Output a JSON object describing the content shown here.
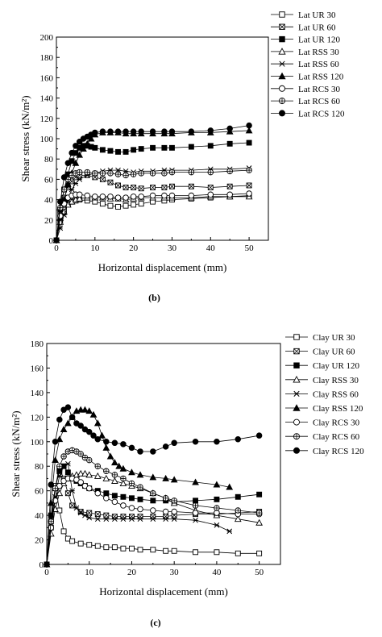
{
  "chart_data": [
    {
      "type": "line",
      "panel_label": "(b)",
      "xlabel": "Horizontal displacement (mm)",
      "ylabel": "Shear stress (kN/m²)",
      "xlim": [
        0,
        55
      ],
      "ylim": [
        0,
        200
      ],
      "xticks": [
        0,
        10,
        20,
        30,
        40,
        50
      ],
      "yticks": [
        0,
        20,
        40,
        60,
        80,
        100,
        120,
        140,
        160,
        180,
        200
      ],
      "legend_position": "top-right",
      "series": [
        {
          "name": "Lat UR 30",
          "marker": "square-open",
          "x": [
            0,
            1,
            2,
            3,
            4,
            5,
            6,
            8,
            10,
            12,
            14,
            16,
            18,
            20,
            22,
            25,
            28,
            30,
            35,
            40,
            45,
            50
          ],
          "y": [
            0,
            20,
            30,
            36,
            38,
            39,
            40,
            39,
            38,
            36,
            34,
            33,
            34,
            35,
            36,
            38,
            39,
            40,
            41,
            42,
            43,
            44
          ]
        },
        {
          "name": "Lat UR 60",
          "marker": "square-cross",
          "x": [
            0,
            1,
            2,
            3,
            4,
            5,
            6,
            8,
            10,
            12,
            14,
            16,
            18,
            20,
            22,
            25,
            28,
            30,
            35,
            40,
            45,
            50
          ],
          "y": [
            0,
            28,
            42,
            52,
            58,
            62,
            64,
            64,
            62,
            60,
            57,
            54,
            52,
            52,
            51,
            52,
            52,
            53,
            53,
            52,
            53,
            54
          ]
        },
        {
          "name": "Lat UR 120",
          "marker": "square-filled",
          "x": [
            0,
            1,
            2,
            3,
            4,
            5,
            6,
            7,
            8,
            9,
            10,
            12,
            14,
            16,
            18,
            20,
            22,
            25,
            28,
            30,
            35,
            40,
            45,
            50
          ],
          "y": [
            0,
            30,
            50,
            65,
            78,
            86,
            91,
            93,
            93,
            92,
            91,
            89,
            88,
            87,
            87,
            89,
            90,
            91,
            91,
            91,
            92,
            93,
            95,
            96
          ]
        },
        {
          "name": "Lat RSS 30",
          "marker": "triangle-open",
          "x": [
            0,
            1,
            2,
            3,
            4,
            5,
            6,
            8,
            10,
            12,
            14,
            16,
            18,
            20,
            22,
            25,
            28,
            30,
            35,
            40,
            45,
            50
          ],
          "y": [
            0,
            18,
            28,
            35,
            38,
            40,
            41,
            42,
            42,
            42,
            41,
            41,
            40,
            41,
            42,
            42,
            42,
            42,
            42,
            43,
            43,
            43
          ]
        },
        {
          "name": "Lat RSS 60",
          "marker": "x-star",
          "x": [
            0,
            1,
            2,
            3,
            4,
            5,
            6,
            8,
            10,
            12,
            14,
            16,
            18,
            20,
            22,
            25,
            28,
            30,
            35,
            40,
            45,
            50
          ],
          "y": [
            0,
            12,
            25,
            40,
            50,
            56,
            60,
            64,
            66,
            68,
            69,
            69,
            68,
            67,
            68,
            68,
            69,
            69,
            69,
            70,
            70,
            71
          ]
        },
        {
          "name": "Lat RSS 120",
          "marker": "triangle-filled",
          "x": [
            0,
            1,
            2,
            3,
            4,
            5,
            6,
            7,
            8,
            9,
            10,
            12,
            14,
            16,
            18,
            20,
            22,
            25,
            28,
            30,
            35,
            40,
            45,
            50
          ],
          "y": [
            0,
            22,
            40,
            55,
            66,
            76,
            84,
            90,
            95,
            100,
            104,
            106,
            106,
            106,
            105,
            105,
            105,
            105,
            105,
            105,
            106,
            106,
            107,
            108
          ]
        },
        {
          "name": "Lat RCS 30",
          "marker": "circle-open",
          "x": [
            0,
            1,
            2,
            3,
            4,
            5,
            6,
            8,
            10,
            12,
            14,
            16,
            18,
            20,
            22,
            25,
            28,
            30,
            35,
            40,
            45,
            50
          ],
          "y": [
            0,
            24,
            36,
            42,
            44,
            45,
            45,
            44,
            43,
            43,
            43,
            42,
            42,
            43,
            43,
            44,
            44,
            44,
            44,
            45,
            45,
            46
          ]
        },
        {
          "name": "Lat RCS 60",
          "marker": "circle-cross",
          "x": [
            0,
            1,
            2,
            3,
            4,
            5,
            6,
            8,
            10,
            12,
            14,
            16,
            18,
            20,
            22,
            25,
            28,
            30,
            35,
            40,
            45,
            50
          ],
          "y": [
            0,
            32,
            50,
            60,
            64,
            66,
            67,
            67,
            66,
            66,
            66,
            65,
            64,
            65,
            66,
            66,
            66,
            67,
            67,
            67,
            68,
            69
          ]
        },
        {
          "name": "Lat RCS 120",
          "marker": "circle-filled",
          "x": [
            0,
            1,
            2,
            3,
            4,
            5,
            6,
            7,
            8,
            9,
            10,
            12,
            14,
            16,
            18,
            20,
            22,
            25,
            28,
            30,
            35,
            40,
            45,
            50
          ],
          "y": [
            0,
            38,
            62,
            76,
            86,
            93,
            97,
            100,
            102,
            104,
            106,
            107,
            107,
            107,
            107,
            107,
            107,
            107,
            107,
            107,
            107,
            108,
            110,
            113
          ]
        }
      ]
    },
    {
      "type": "line",
      "panel_label": "(c)",
      "xlabel": "Horizontal displacement (mm)",
      "ylabel": "Shear stress (kN/m²)",
      "xlim": [
        0,
        55
      ],
      "ylim": [
        0,
        180
      ],
      "xticks": [
        0,
        10,
        20,
        30,
        40,
        50
      ],
      "yticks": [
        0,
        20,
        40,
        60,
        80,
        100,
        120,
        140,
        160,
        180
      ],
      "legend_position": "top-right",
      "series": [
        {
          "name": "Clay UR 30",
          "marker": "square-open",
          "x": [
            0,
            1,
            2,
            3,
            4,
            5,
            6,
            8,
            10,
            12,
            14,
            16,
            18,
            20,
            22,
            25,
            28,
            30,
            35,
            40,
            45,
            50
          ],
          "y": [
            0,
            30,
            64,
            44,
            27,
            21,
            19,
            17,
            16,
            15,
            14,
            14,
            13,
            13,
            12,
            12,
            11,
            11,
            10,
            10,
            9,
            9
          ]
        },
        {
          "name": "Clay UR 60",
          "marker": "square-cross",
          "x": [
            0,
            1,
            2,
            3,
            4,
            5,
            6,
            8,
            10,
            12,
            14,
            16,
            18,
            20,
            22,
            25,
            28,
            30,
            35,
            40,
            45,
            50
          ],
          "y": [
            0,
            35,
            62,
            78,
            70,
            58,
            48,
            43,
            42,
            41,
            40,
            39,
            39,
            39,
            39,
            39,
            39,
            40,
            41,
            41,
            42,
            43
          ]
        },
        {
          "name": "Clay UR 120",
          "marker": "square-filled",
          "x": [
            0,
            1,
            2,
            3,
            4,
            5,
            6,
            7,
            8,
            9,
            10,
            12,
            14,
            16,
            18,
            20,
            22,
            25,
            28,
            30,
            35,
            40,
            45,
            50
          ],
          "y": [
            0,
            40,
            62,
            76,
            80,
            75,
            70,
            68,
            66,
            64,
            62,
            60,
            58,
            56,
            55,
            54,
            53,
            52,
            52,
            51,
            52,
            53,
            55,
            57
          ]
        },
        {
          "name": "Clay RSS 30",
          "marker": "triangle-open",
          "x": [
            0,
            1,
            2,
            3,
            4,
            5,
            6,
            7,
            8,
            9,
            10,
            12,
            14,
            16,
            18,
            20,
            22,
            25,
            28,
            30,
            35,
            40,
            45,
            50
          ],
          "y": [
            0,
            25,
            45,
            58,
            66,
            70,
            72,
            73,
            74,
            74,
            73,
            72,
            70,
            68,
            66,
            64,
            62,
            58,
            54,
            50,
            44,
            40,
            37,
            34
          ]
        },
        {
          "name": "Clay RSS 60",
          "marker": "x-star",
          "x": [
            0,
            1,
            2,
            3,
            4,
            5,
            6,
            7,
            8,
            9,
            10,
            12,
            14,
            16,
            18,
            20,
            22,
            25,
            28,
            30,
            35,
            40,
            43
          ],
          "y": [
            0,
            30,
            55,
            72,
            80,
            82,
            60,
            46,
            42,
            40,
            38,
            37,
            37,
            37,
            37,
            37,
            37,
            37,
            37,
            37,
            36,
            32,
            27
          ]
        },
        {
          "name": "Clay RSS 120",
          "marker": "triangle-filled",
          "x": [
            0,
            1,
            2,
            3,
            4,
            5,
            6,
            7,
            8,
            9,
            10,
            11,
            12,
            13,
            14,
            15,
            16,
            17,
            18,
            20,
            22,
            25,
            28,
            30,
            35,
            40,
            43
          ],
          "y": [
            0,
            50,
            85,
            102,
            110,
            115,
            120,
            125,
            126,
            126,
            125,
            122,
            115,
            105,
            95,
            88,
            83,
            80,
            78,
            75,
            73,
            71,
            70,
            69,
            67,
            65,
            63
          ]
        },
        {
          "name": "Clay RCS 30",
          "marker": "circle-open",
          "x": [
            0,
            1,
            2,
            3,
            4,
            5,
            6,
            7,
            8,
            9,
            10,
            12,
            14,
            16,
            18,
            20,
            22,
            25,
            28,
            30,
            35,
            40,
            45,
            50
          ],
          "y": [
            0,
            30,
            52,
            64,
            68,
            70,
            70,
            69,
            67,
            64,
            62,
            58,
            54,
            51,
            48,
            46,
            45,
            44,
            43,
            43,
            42,
            42,
            41,
            41
          ]
        },
        {
          "name": "Clay RCS 60",
          "marker": "circle-cross",
          "x": [
            0,
            1,
            2,
            3,
            4,
            5,
            6,
            7,
            8,
            9,
            10,
            12,
            14,
            16,
            18,
            20,
            22,
            25,
            28,
            30,
            35,
            40,
            45,
            50
          ],
          "y": [
            0,
            35,
            62,
            80,
            88,
            92,
            93,
            92,
            90,
            87,
            85,
            80,
            76,
            73,
            70,
            66,
            63,
            58,
            54,
            52,
            48,
            46,
            44,
            42
          ]
        },
        {
          "name": "Clay RCS 120",
          "marker": "circle-filled",
          "x": [
            0,
            1,
            2,
            3,
            4,
            5,
            6,
            7,
            8,
            9,
            10,
            11,
            12,
            14,
            16,
            18,
            20,
            22,
            25,
            28,
            30,
            35,
            40,
            45,
            50
          ],
          "y": [
            0,
            65,
            100,
            118,
            126,
            128,
            120,
            115,
            113,
            110,
            108,
            105,
            102,
            100,
            99,
            98,
            95,
            92,
            92,
            96,
            99,
            100,
            100,
            102,
            105
          ]
        }
      ]
    }
  ]
}
